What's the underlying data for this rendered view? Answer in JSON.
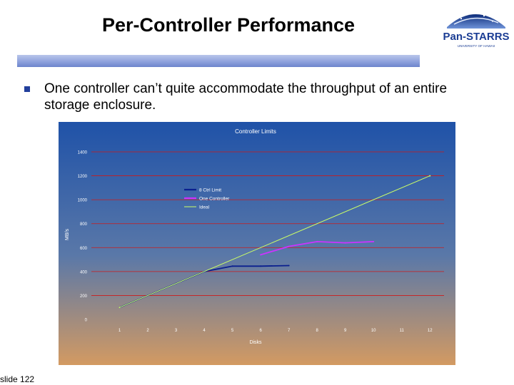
{
  "slide": {
    "title": "Per-Controller Performance",
    "bullet": "One controller can’t quite accommodate the throughput of an entire storage enclosure.",
    "slide_number": "slide 122"
  },
  "logo": {
    "name": "Pan-STARRS",
    "subtitle": "UNIVERSITY OF HAWAII"
  },
  "colors": {
    "title_bar": "#8fa2dd",
    "bullet": "#223f9c",
    "chart_bg_top": "#1f52a8",
    "chart_bg_bottom": "#d39a62",
    "gridline": "#cc1a1a"
  },
  "chart_data": {
    "type": "line",
    "title": "Controller Limits",
    "xlabel": "Disks",
    "ylabel": "MB/s",
    "xlim": [
      0,
      12.5
    ],
    "ylim": [
      0,
      1400
    ],
    "x_ticks": [
      1,
      2,
      3,
      4,
      5,
      6,
      7,
      8,
      9,
      10,
      11,
      12
    ],
    "y_ticks": [
      0,
      200,
      400,
      600,
      800,
      1000,
      1200,
      1400
    ],
    "grid": "horizontal",
    "legend": "upper-left",
    "series": [
      {
        "name": "8 Ctrl Limit",
        "color": "#0a1f8f",
        "points": [
          [
            1,
            100
          ],
          [
            2,
            200
          ],
          [
            3,
            300
          ],
          [
            4,
            400
          ],
          [
            5,
            445
          ],
          [
            6,
            445
          ],
          [
            7,
            450
          ]
        ]
      },
      {
        "name": "One Controller",
        "color": "#cc33ff",
        "points": [
          [
            6,
            540
          ],
          [
            7,
            610
          ],
          [
            8,
            650
          ],
          [
            9,
            640
          ],
          [
            10,
            650
          ]
        ]
      },
      {
        "name": "Ideal",
        "color": "#ccff66",
        "points": [
          [
            1,
            100
          ],
          [
            12,
            1200
          ]
        ]
      }
    ]
  }
}
